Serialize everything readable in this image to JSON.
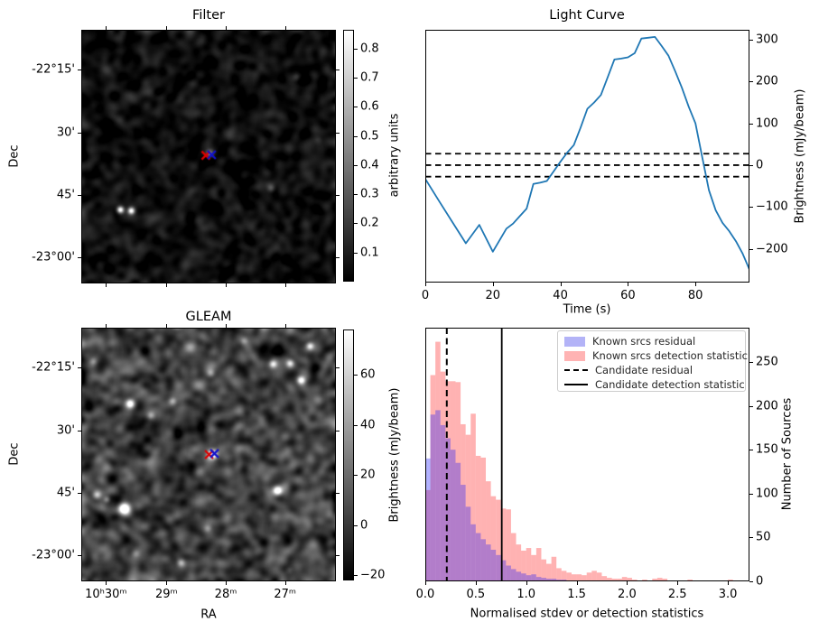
{
  "figure_bg": "#ffffff",
  "colors": {
    "line_blue": "#1f77b4",
    "hist_blue_fill": "rgba(0,0,255,0.30)",
    "hist_pink_fill": "rgba(255,0,0,0.30)",
    "legend_blue_swatch": "#b3b3f7",
    "legend_pink_swatch": "#ffb3b3",
    "marker_red": "#dd0000",
    "marker_blue": "#1111cc",
    "threshold_black": "#000000"
  },
  "chart_data": [
    {
      "id": "filter",
      "type": "heatmap",
      "title": "Filter",
      "xlabel": "",
      "ylabel": "Dec",
      "ytick_labels": [
        "-22°15'",
        "30'",
        "45'",
        "-23°00'"
      ],
      "xtick_labels": [
        "",
        "",
        "",
        ""
      ],
      "colorbar": {
        "label": "arbitrary units",
        "ticks": [
          0.8,
          0.7,
          0.6,
          0.5,
          0.4,
          0.3,
          0.2,
          0.1
        ],
        "vmin": 0,
        "vmax": 0.865
      },
      "noise": {
        "base": 0.05,
        "amp": 0.045,
        "seed": 7
      },
      "sources": [
        {
          "x": 0.152,
          "y": 0.708,
          "sigma": 2.6,
          "amp": 0.85
        },
        {
          "x": 0.195,
          "y": 0.712,
          "sigma": 2.6,
          "amp": 0.8
        },
        {
          "x": 0.503,
          "y": 0.487,
          "sigma": 3.2,
          "amp": 0.42
        },
        {
          "x": 0.745,
          "y": 0.623,
          "sigma": 3.0,
          "amp": 0.22
        },
        {
          "x": 0.844,
          "y": 0.185,
          "sigma": 3.0,
          "amp": 0.18
        },
        {
          "x": 0.089,
          "y": 0.149,
          "sigma": 4.0,
          "amp": 0.1
        },
        {
          "x": 0.929,
          "y": 0.434,
          "sigma": 3.0,
          "amp": 0.1
        }
      ],
      "markers": [
        {
          "name": "candidate-cross-red",
          "x": 0.489,
          "y": 0.495,
          "color": "#dd0000"
        },
        {
          "name": "catalog-cross-blue",
          "x": 0.512,
          "y": 0.493,
          "color": "#1111cc"
        }
      ]
    },
    {
      "id": "light-curve",
      "type": "line",
      "title": "Light Curve",
      "xlabel": "Time (s)",
      "ylabel": "Brightness (mJy/beam)",
      "xlim": [
        0,
        96
      ],
      "ylim": [
        -281,
        324
      ],
      "xticks": [
        0,
        20,
        40,
        60,
        80
      ],
      "yticks": [
        300,
        200,
        100,
        0,
        -100,
        -200
      ],
      "threshold_lines": [
        27.5,
        0,
        -27.5
      ],
      "points": [
        [
          0,
          -33
        ],
        [
          4,
          -85
        ],
        [
          8,
          -136
        ],
        [
          12,
          -187
        ],
        [
          16,
          -143
        ],
        [
          20,
          -207
        ],
        [
          24,
          -152
        ],
        [
          26,
          -140
        ],
        [
          28,
          -122
        ],
        [
          30,
          -104
        ],
        [
          32,
          -45
        ],
        [
          34,
          -42
        ],
        [
          36,
          -38
        ],
        [
          38,
          -15
        ],
        [
          40,
          8
        ],
        [
          42,
          30
        ],
        [
          44,
          48
        ],
        [
          46,
          90
        ],
        [
          48,
          135
        ],
        [
          50,
          150
        ],
        [
          52,
          168
        ],
        [
          54,
          210
        ],
        [
          56,
          253
        ],
        [
          58,
          255
        ],
        [
          60,
          258
        ],
        [
          62,
          268
        ],
        [
          64,
          303
        ],
        [
          66,
          305
        ],
        [
          68,
          307
        ],
        [
          70,
          285
        ],
        [
          72,
          262
        ],
        [
          74,
          225
        ],
        [
          76,
          185
        ],
        [
          78,
          140
        ],
        [
          80,
          100
        ],
        [
          82,
          20
        ],
        [
          84,
          -60
        ],
        [
          86,
          -108
        ],
        [
          88,
          -138
        ],
        [
          90,
          -158
        ],
        [
          92,
          -182
        ],
        [
          94,
          -212
        ],
        [
          96,
          -250
        ]
      ]
    },
    {
      "id": "gleam",
      "type": "heatmap",
      "title": "GLEAM",
      "xlabel": "RA",
      "ylabel": "Dec",
      "ytick_labels": [
        "-22°15'",
        "30'",
        "45'",
        "-23°00'"
      ],
      "xtick_labels": [
        "10ʰ30ᵐ",
        "29ᵐ",
        "28ᵐ",
        "27ᵐ"
      ],
      "colorbar": {
        "label": "Brightness (mJy/beam)",
        "ticks": [
          60,
          40,
          20,
          0,
          -20
        ],
        "vmin": -22,
        "vmax": 78
      },
      "noise": {
        "base": 3,
        "amp": 9,
        "seed": 42
      },
      "sources": [
        {
          "x": 0.191,
          "y": 0.299,
          "sigma": 3.5,
          "amp": 95
        },
        {
          "x": 0.862,
          "y": 0.206,
          "sigma": 3.2,
          "amp": 85
        },
        {
          "x": 0.752,
          "y": 0.142,
          "sigma": 3.0,
          "amp": 70
        },
        {
          "x": 0.819,
          "y": 0.139,
          "sigma": 3.0,
          "amp": 65
        },
        {
          "x": 0.507,
          "y": 0.178,
          "sigma": 3.0,
          "amp": 38
        },
        {
          "x": 0.358,
          "y": 0.288,
          "sigma": 3.0,
          "amp": 45
        },
        {
          "x": 0.273,
          "y": 0.345,
          "sigma": 3.0,
          "amp": 40
        },
        {
          "x": 0.514,
          "y": 0.498,
          "sigma": 3.6,
          "amp": 120
        },
        {
          "x": 0.77,
          "y": 0.641,
          "sigma": 3.6,
          "amp": 110
        },
        {
          "x": 0.06,
          "y": 0.658,
          "sigma": 3.0,
          "amp": 45
        },
        {
          "x": 0.167,
          "y": 0.712,
          "sigma": 4.5,
          "amp": 130
        },
        {
          "x": 0.099,
          "y": 0.676,
          "sigma": 2.6,
          "amp": 40
        },
        {
          "x": 0.39,
          "y": 0.925,
          "sigma": 3.2,
          "amp": 55
        },
        {
          "x": 0.046,
          "y": 0.132,
          "sigma": 3.0,
          "amp": 30
        },
        {
          "x": 0.376,
          "y": -0.021,
          "sigma": 4.0,
          "amp": 110
        },
        {
          "x": 0.897,
          "y": 0.071,
          "sigma": 3.0,
          "amp": 70
        },
        {
          "x": 0.496,
          "y": 0.79,
          "sigma": 3.0,
          "amp": 30
        },
        {
          "x": 0.213,
          "y": 0.89,
          "sigma": 3.0,
          "amp": 25
        },
        {
          "x": 0.816,
          "y": 0.954,
          "sigma": 3.0,
          "amp": 22
        },
        {
          "x": 0.638,
          "y": 0.05,
          "sigma": 3.0,
          "amp": 35
        }
      ],
      "markers": [
        {
          "name": "candidate-cross-red",
          "x": 0.502,
          "y": 0.5,
          "color": "#dd0000"
        },
        {
          "name": "catalog-cross-blue",
          "x": 0.523,
          "y": 0.496,
          "color": "#1111cc"
        }
      ]
    },
    {
      "id": "statistics-histogram",
      "type": "bar",
      "title": "",
      "xlabel": "Normalised stdev or detection statistics",
      "ylabel": "Number of Sources",
      "xlim": [
        0,
        3.214
      ],
      "ylim": [
        0,
        289
      ],
      "xticks": [
        0.0,
        0.5,
        1.0,
        1.5,
        2.0,
        2.5,
        3.0
      ],
      "yticks": [
        0,
        50,
        100,
        150,
        200,
        250
      ],
      "bin_start": 0,
      "bin_width": 0.05,
      "series": [
        {
          "name": "Known srcs detection statistic",
          "color": "rgba(255,0,0,0.30)",
          "values": [
            104,
            235,
            273,
            239,
            228,
            228,
            227,
            179,
            167,
            191,
            143,
            141,
            114,
            97,
            93,
            83,
            82,
            55,
            42,
            35,
            38,
            30,
            38,
            25,
            20,
            28,
            15,
            12,
            10,
            8,
            8,
            7,
            10,
            12,
            10,
            6,
            4,
            3,
            3,
            5,
            4,
            2,
            1,
            2,
            1,
            3,
            4,
            3,
            1,
            1,
            0,
            0,
            2,
            1,
            0,
            0,
            0,
            0,
            0,
            0,
            2,
            1
          ]
        },
        {
          "name": "Known srcs residual",
          "color": "rgba(0,0,255,0.30)",
          "values": [
            140,
            190,
            195,
            178,
            163,
            150,
            135,
            110,
            85,
            65,
            55,
            48,
            42,
            36,
            30,
            24,
            18,
            14,
            11,
            9,
            7,
            8,
            5,
            4,
            3,
            3,
            2,
            2,
            1,
            1,
            1,
            1,
            0,
            1
          ]
        }
      ],
      "vlines": [
        {
          "name": "Candidate residual",
          "style": "dashed",
          "x": 0.213
        },
        {
          "name": "Candidate detection statistic",
          "style": "solid",
          "x": 0.758
        }
      ],
      "legend": [
        {
          "label": "Known srcs residual",
          "swatch": "patch-blue"
        },
        {
          "label": "Known srcs detection statistic",
          "swatch": "patch-pink"
        },
        {
          "label": "Candidate residual",
          "swatch": "line-dashed"
        },
        {
          "label": "Candidate detection statistic",
          "swatch": "line-solid"
        }
      ],
      "legend_position": "upper right",
      "grid": false
    }
  ]
}
